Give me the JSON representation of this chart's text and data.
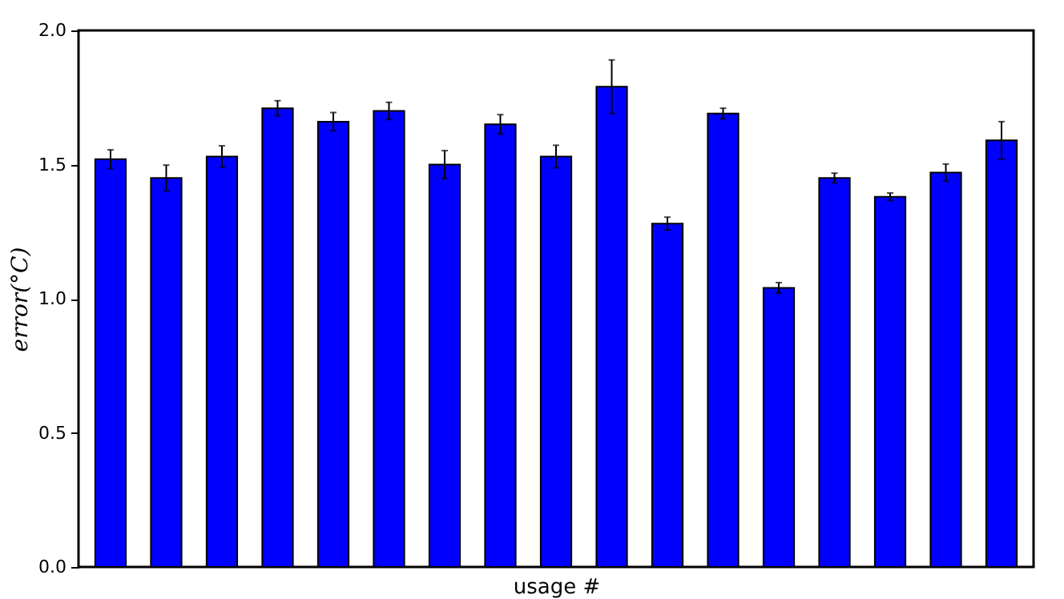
{
  "chart_data": {
    "type": "bar",
    "xlabel": "usage #",
    "ylabel": "error(°C)",
    "categories": [
      null,
      null,
      null,
      null,
      null,
      null,
      null,
      null,
      null,
      null,
      null,
      null,
      null,
      null,
      null,
      null,
      null
    ],
    "values": [
      1.52,
      1.45,
      1.53,
      1.71,
      1.66,
      1.7,
      1.5,
      1.65,
      1.53,
      1.79,
      1.28,
      1.69,
      1.04,
      1.45,
      1.38,
      1.47,
      1.59
    ],
    "errors": [
      0.035,
      0.048,
      0.04,
      0.028,
      0.034,
      0.032,
      0.052,
      0.036,
      0.042,
      0.1,
      0.024,
      0.02,
      0.02,
      0.018,
      0.014,
      0.032,
      0.07
    ],
    "color": "#0000ff",
    "ylim": [
      0,
      2
    ],
    "yticks": [
      {
        "value": 0,
        "label": "0.0"
      },
      {
        "value": 0.5,
        "label": "0.5"
      },
      {
        "value": 1,
        "label": "1.0"
      },
      {
        "value": 1.5,
        "label": "1.5"
      },
      {
        "value": 2,
        "label": "2.0"
      }
    ],
    "grid": false
  }
}
